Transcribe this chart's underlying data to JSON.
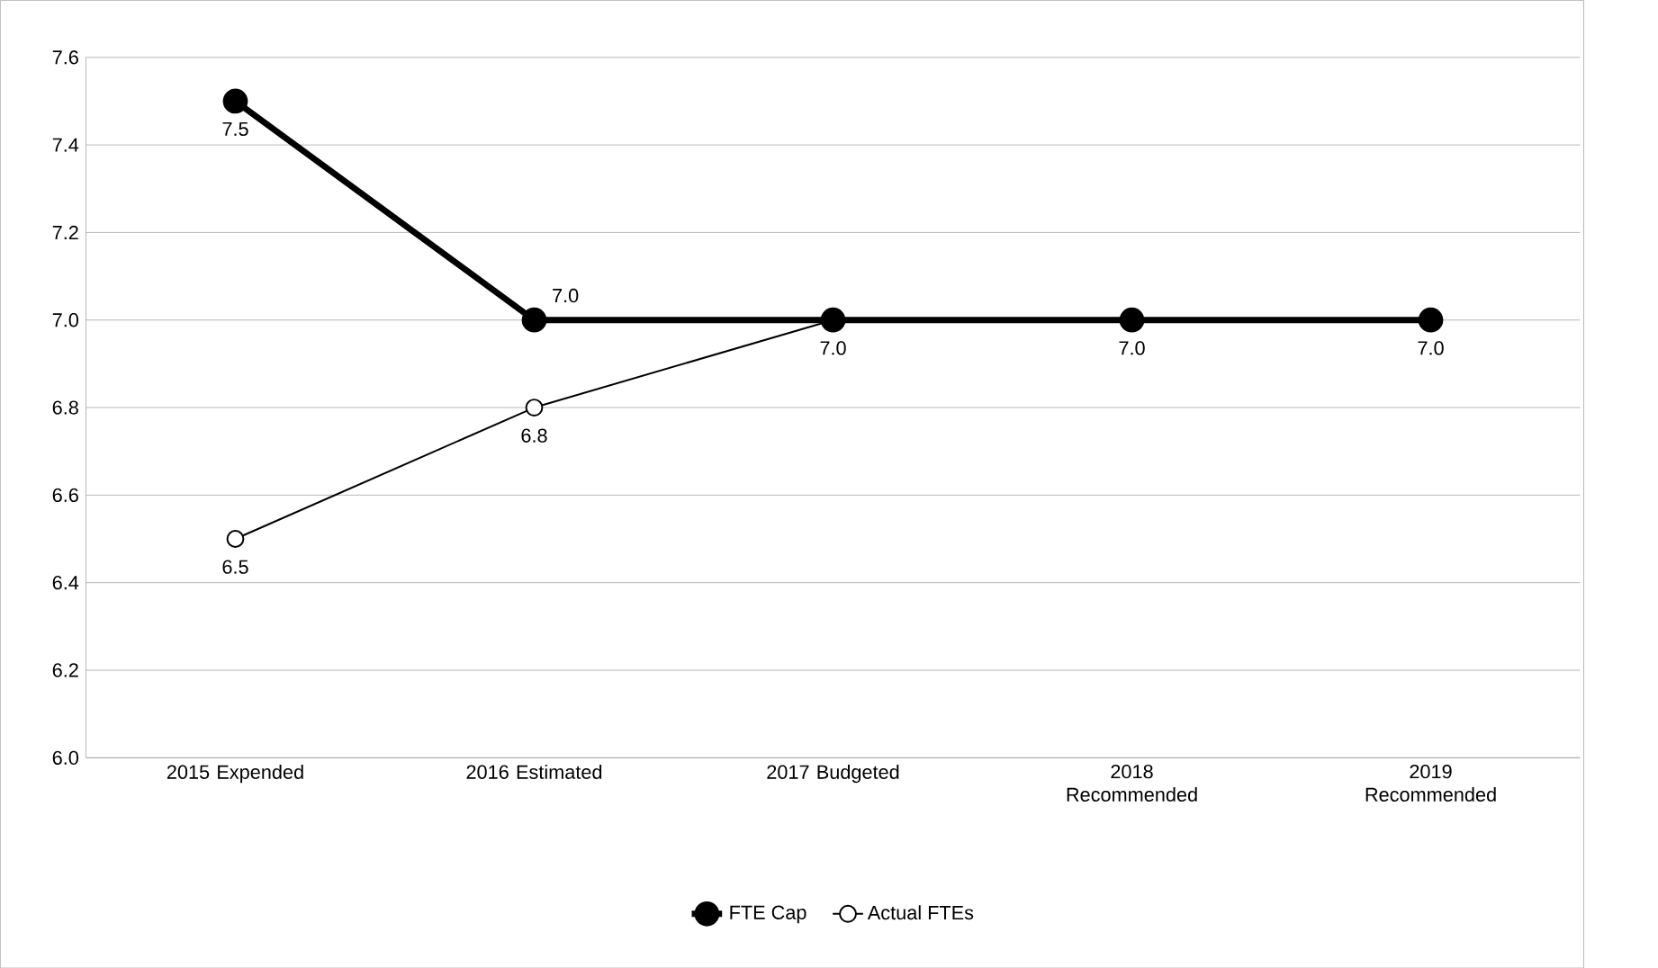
{
  "chart_data": {
    "type": "line",
    "categories": [
      "2015 Expended",
      "2016 Estimated",
      "2017 Budgeted",
      "2018 Recommended",
      "2019 Recommended"
    ],
    "series": [
      {
        "name": "FTE Cap",
        "color": "#000000",
        "values": [
          7.5,
          7.0,
          7.0,
          7.0,
          7.0
        ],
        "value_labels": [
          "7.5",
          "7.0",
          "7.0",
          "7.0",
          "7.0"
        ]
      },
      {
        "name": "Actual FTEs",
        "color": "#000000",
        "values": [
          6.5,
          6.8,
          7.0,
          null,
          null
        ],
        "value_labels": [
          "6.5",
          "6.8",
          null,
          null,
          null
        ]
      }
    ],
    "ylim": [
      6.0,
      7.6
    ],
    "yticks": [
      {
        "value": 6.0,
        "label": "6.0"
      },
      {
        "value": 6.2,
        "label": "6.2"
      },
      {
        "value": 6.4,
        "label": "6.4"
      },
      {
        "value": 6.6,
        "label": "6.6"
      },
      {
        "value": 6.8,
        "label": "6.8"
      },
      {
        "value": 7.0,
        "label": "7.0"
      },
      {
        "value": 7.2,
        "label": "7.2"
      },
      {
        "value": 7.4,
        "label": "7.4"
      },
      {
        "value": 7.6,
        "label": "7.6"
      }
    ],
    "grid": "y",
    "legend": "bottom",
    "marker": "circle",
    "line_style": "solid"
  }
}
